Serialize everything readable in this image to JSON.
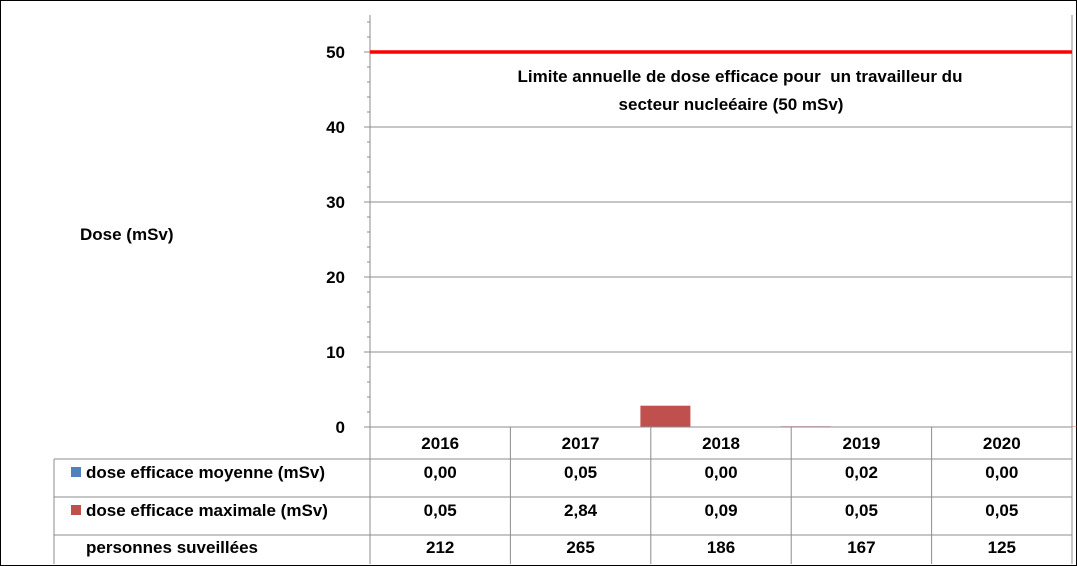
{
  "chart_data": {
    "type": "bar",
    "ylabel": "Dose (mSv)",
    "ylim": [
      0,
      55
    ],
    "yticks": [
      0,
      10,
      20,
      30,
      40,
      50
    ],
    "grid": true,
    "categories": [
      "2016",
      "2017",
      "2018",
      "2019",
      "2020"
    ],
    "series": [
      {
        "name": "dose efficace moyenne (mSv)",
        "color": "#4F81BD",
        "values": [
          0.0,
          0.05,
          0.0,
          0.02,
          0.0
        ],
        "labels": [
          "0,00",
          "0,05",
          "0,00",
          "0,02",
          "0,00"
        ]
      },
      {
        "name": "dose efficace maximale (mSv)",
        "color": "#C0504D",
        "values": [
          0.05,
          2.84,
          0.09,
          0.05,
          0.05
        ],
        "labels": [
          "0,05",
          "2,84",
          "0,09",
          "0,05",
          "0,05"
        ]
      }
    ],
    "extra_row": {
      "name": "personnes suveillées",
      "values": [
        "212",
        "265",
        "186",
        "167",
        "125"
      ]
    },
    "reference_line": {
      "value": 50,
      "color": "#FF0000",
      "label_line1": "Limite annuelle de dose efficace pour  un travailleur du",
      "label_line2": "secteur nucleéaire (50 mSv)"
    }
  }
}
